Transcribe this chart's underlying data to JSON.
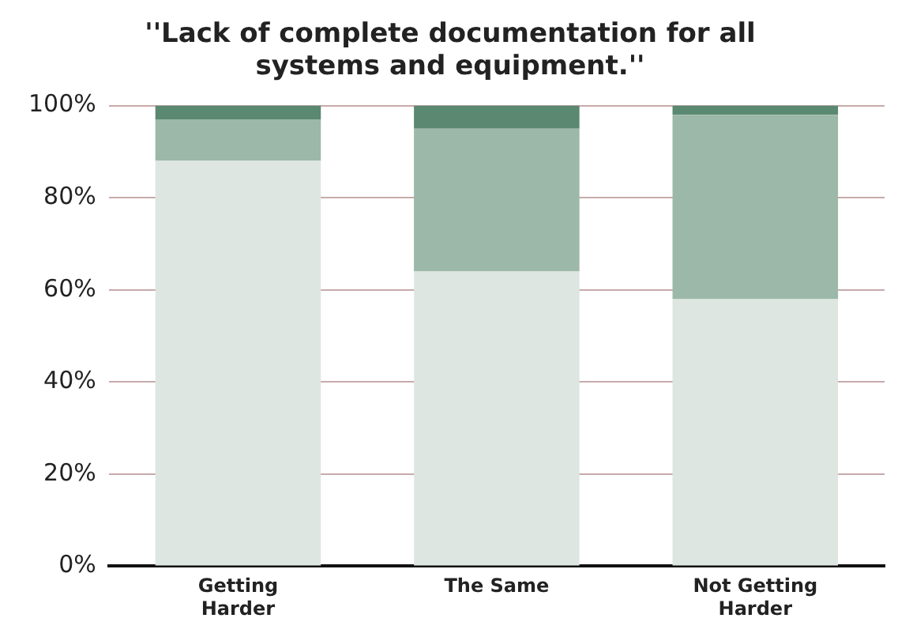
{
  "chart_data": {
    "type": "bar",
    "title": [
      "''Lack of complete documentation for all",
      "systems and equipment.''"
    ],
    "categories": [
      [
        "Getting",
        "Harder"
      ],
      "The Same",
      [
        "Not Getting",
        "Harder"
      ]
    ],
    "stacked": true,
    "series": [
      {
        "color": "#dde6e0",
        "values": [
          88,
          64,
          58
        ]
      },
      {
        "color": "#9cb8a8",
        "values": [
          9,
          31,
          40
        ]
      },
      {
        "color": "#5b8870",
        "values": [
          3,
          5,
          2
        ]
      }
    ],
    "ylim": [
      0,
      100
    ],
    "yticks": [
      {
        "value": 0,
        "label": "0%"
      },
      {
        "value": 20,
        "label": "20%"
      },
      {
        "value": 40,
        "label": "40%"
      },
      {
        "value": 60,
        "label": "60%"
      },
      {
        "value": 80,
        "label": "80%"
      },
      {
        "value": 100,
        "label": "100%"
      }
    ],
    "grid": "y",
    "legend": false
  }
}
